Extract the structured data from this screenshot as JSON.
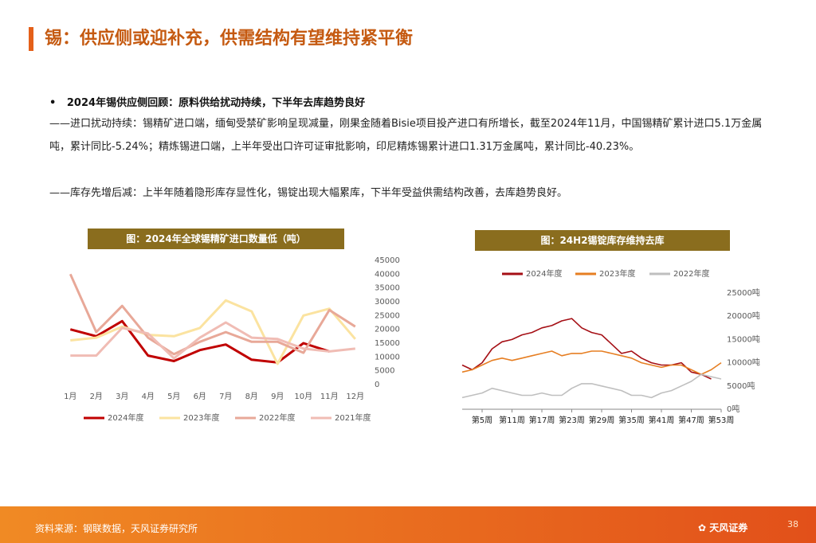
{
  "header": {
    "title": "锡：供应侧或迎补充，供需结构有望维持紧平衡"
  },
  "body": {
    "bullet": "2024年锡供应侧回顾：原料供给扰动持续，下半年去库趋势良好",
    "paragraphs": [
      "——进口扰动持续：锡精矿进口端，缅甸受禁矿影响呈现减量，刚果金随着Bisie项目投产进口有所增长，截至2024年11月，中国锡精矿累计进口5.1万金属吨，累计同比-5.24%；精炼锡进口端，上半年受出口许可证审批影响，印尼精炼锡累计进口1.31万金属吨，累计同比-40.23%。",
      "——库存先增后减：上半年随着隐形库存显性化，锡锭出现大幅累库，下半年受益供需结构改善，去库趋势良好。"
    ]
  },
  "chart_data": [
    {
      "type": "line",
      "title": "图：2024年全球锡精矿进口数量低（吨）",
      "legend": "bottom",
      "categories": [
        "1月",
        "2月",
        "3月",
        "4月",
        "5月",
        "6月",
        "7月",
        "8月",
        "9月",
        "10月",
        "11月",
        "12月"
      ],
      "ylim": [
        0,
        45000
      ],
      "yticks": [
        0,
        5000,
        10000,
        15000,
        20000,
        25000,
        30000,
        35000,
        40000,
        45000
      ],
      "series": [
        {
          "name": "2024年度",
          "color": "#c00000",
          "values": [
            20000,
            17500,
            23000,
            10500,
            8500,
            12500,
            14500,
            9000,
            8000,
            15000,
            12000,
            null
          ]
        },
        {
          "name": "2023年度",
          "color": "#fbe3a0",
          "values": [
            16000,
            17000,
            21000,
            18000,
            17500,
            20500,
            30500,
            26500,
            7500,
            25000,
            27500,
            16500
          ]
        },
        {
          "name": "2022年度",
          "color": "#e8a898",
          "values": [
            40000,
            19000,
            28500,
            17000,
            11000,
            15500,
            19000,
            15500,
            15500,
            11500,
            27000,
            21000
          ]
        },
        {
          "name": "2021年度",
          "color": "#f0bcb4",
          "values": [
            10500,
            10500,
            20500,
            18500,
            9500,
            17000,
            22500,
            17000,
            16500,
            13000,
            12000,
            13000
          ]
        }
      ]
    },
    {
      "type": "line",
      "title": "图：24H2锡锭库存维持去库",
      "legend": "top",
      "x": [
        1,
        3,
        5,
        7,
        9,
        11,
        13,
        15,
        17,
        19,
        21,
        23,
        25,
        27,
        29,
        31,
        33,
        35,
        37,
        39,
        41,
        43,
        45,
        47,
        49,
        51,
        53
      ],
      "xlim": [
        1,
        53
      ],
      "xticks": [
        {
          "value": 5,
          "label": "第5周"
        },
        {
          "value": 11,
          "label": "第11周"
        },
        {
          "value": 17,
          "label": "第17周"
        },
        {
          "value": 23,
          "label": "第23周"
        },
        {
          "value": 29,
          "label": "第29周"
        },
        {
          "value": 35,
          "label": "第35周"
        },
        {
          "value": 41,
          "label": "第41周"
        },
        {
          "value": 47,
          "label": "第47周"
        },
        {
          "value": 53,
          "label": "第53周"
        }
      ],
      "ylim": [
        0,
        25000
      ],
      "yticks": [
        {
          "value": 0,
          "label": "0吨"
        },
        {
          "value": 5000,
          "label": "5000吨"
        },
        {
          "value": 10000,
          "label": "10000吨"
        },
        {
          "value": 15000,
          "label": "15000吨"
        },
        {
          "value": 20000,
          "label": "20000吨"
        },
        {
          "value": 25000,
          "label": "25000吨"
        }
      ],
      "series": [
        {
          "name": "2024年度",
          "color": "#a50f15",
          "values": [
            9500,
            8500,
            10000,
            13000,
            14500,
            15000,
            16000,
            16500,
            17500,
            18000,
            19000,
            19500,
            17500,
            16500,
            16000,
            14000,
            12000,
            12500,
            11000,
            10000,
            9500,
            9500,
            10000,
            8000,
            7500,
            6500,
            null
          ]
        },
        {
          "name": "2023年度",
          "color": "#e67e22",
          "values": [
            8000,
            8500,
            9500,
            10500,
            11000,
            10500,
            11000,
            11500,
            12000,
            12500,
            11500,
            12000,
            12000,
            12500,
            12500,
            12000,
            11500,
            11000,
            10000,
            9500,
            9000,
            9500,
            9500,
            8500,
            7500,
            8500,
            10000
          ]
        },
        {
          "name": "2022年度",
          "color": "#bfbfbf",
          "values": [
            2500,
            3000,
            3500,
            4500,
            4000,
            3500,
            3000,
            3000,
            3500,
            3000,
            3000,
            4500,
            5500,
            5500,
            5000,
            4500,
            4000,
            3000,
            3000,
            2500,
            3500,
            4000,
            5000,
            6000,
            7500,
            7000,
            6500
          ]
        }
      ]
    }
  ],
  "footer": {
    "source": "资料来源：钢联数据，天风证券研究所",
    "logo": "天风证券",
    "page": "38"
  }
}
